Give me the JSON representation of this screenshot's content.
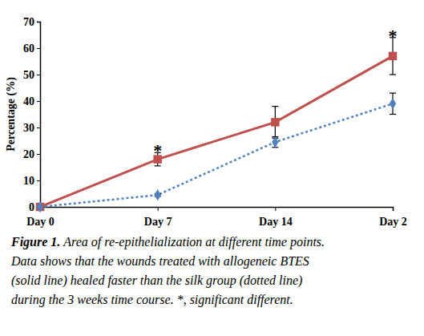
{
  "chart_data": {
    "type": "line",
    "y_label": "Percentage (%)",
    "categories": [
      "Day 0",
      "Day 7",
      "Day 14",
      "Day 2"
    ],
    "ylim": [
      0,
      70
    ],
    "yticks": [
      0,
      10,
      20,
      30,
      40,
      50,
      60,
      70
    ],
    "grid": false,
    "series": [
      {
        "color": "#c0504d",
        "line_style": "solid",
        "marker": "square",
        "values": [
          0,
          18,
          32,
          57
        ],
        "errors": [
          0,
          2.5,
          6,
          7
        ]
      },
      {
        "color": "#4f81bd",
        "line_style": "dotted",
        "marker": "diamond",
        "values": [
          0,
          4.5,
          24.5,
          39
        ],
        "errors": [
          0,
          0.5,
          2,
          4
        ]
      }
    ],
    "annotations": [
      {
        "text": "*",
        "category": 1,
        "y": 22
      },
      {
        "text": "*",
        "category": 3,
        "y": 65.5
      }
    ],
    "caption": {
      "label": "Figure 1.",
      "lines": [
        "Area of re-epithelialization at different time points.",
        "Data shows that the wounds treated with allogeneic BTES",
        "(solid line) healed faster than the silk group (dotted line)",
        "during the 3 weeks time course. *, significant different."
      ]
    }
  }
}
